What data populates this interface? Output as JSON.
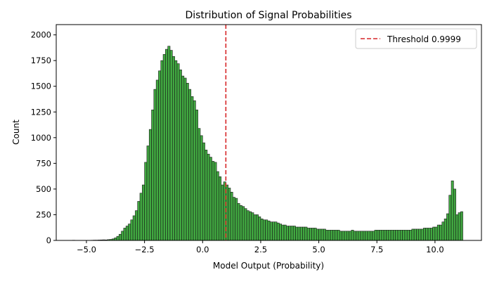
{
  "chart_data": {
    "type": "bar",
    "title": "Distribution of Signal Probabilities",
    "xlabel": "Model Output (Probability)",
    "ylabel": "Count",
    "xlim": [
      -6.3,
      12.0
    ],
    "ylim": [
      0,
      2100
    ],
    "xticks": [
      -5.0,
      -2.5,
      0.0,
      2.5,
      5.0,
      7.5,
      10.0
    ],
    "xtick_labels": [
      "−5.0",
      "−2.5",
      "0.0",
      "2.5",
      "5.0",
      "7.5",
      "10.0"
    ],
    "yticks": [
      0,
      250,
      500,
      750,
      1000,
      1250,
      1500,
      1750,
      2000
    ],
    "ytick_labels": [
      "0",
      "250",
      "500",
      "750",
      "1000",
      "1250",
      "1500",
      "1750",
      "2000"
    ],
    "grid": false,
    "legend_position": "top-right",
    "bin_start": -5.6,
    "bin_width": 0.1,
    "bar_color": "#2ca02c",
    "bar_edge_color": "#1a1a1a",
    "values": [
      2,
      0,
      0,
      0,
      0,
      0,
      0,
      0,
      2,
      3,
      3,
      4,
      5,
      6,
      5,
      8,
      10,
      15,
      25,
      40,
      60,
      90,
      120,
      140,
      160,
      200,
      240,
      290,
      380,
      460,
      540,
      760,
      920,
      1080,
      1270,
      1470,
      1560,
      1650,
      1750,
      1810,
      1860,
      1890,
      1850,
      1790,
      1750,
      1720,
      1660,
      1600,
      1580,
      1530,
      1470,
      1400,
      1360,
      1270,
      1090,
      1020,
      950,
      880,
      840,
      810,
      770,
      760,
      670,
      620,
      540,
      570,
      540,
      510,
      470,
      420,
      410,
      360,
      340,
      330,
      310,
      290,
      280,
      270,
      250,
      250,
      230,
      210,
      200,
      200,
      190,
      180,
      180,
      180,
      170,
      160,
      150,
      150,
      140,
      140,
      140,
      140,
      130,
      130,
      130,
      130,
      130,
      120,
      120,
      120,
      120,
      110,
      110,
      110,
      110,
      100,
      100,
      100,
      100,
      100,
      100,
      90,
      90,
      90,
      90,
      90,
      100,
      90,
      90,
      90,
      90,
      90,
      90,
      90,
      90,
      90,
      100,
      100,
      100,
      100,
      100,
      100,
      100,
      100,
      100,
      100,
      100,
      100,
      100,
      100,
      100,
      100,
      110,
      110,
      110,
      110,
      110,
      120,
      120,
      120,
      120,
      130,
      130,
      150,
      150,
      180,
      210,
      260,
      440,
      580,
      500,
      250,
      270,
      280
    ],
    "threshold": {
      "x": 1.0,
      "label": "Threshold 0.9999",
      "color": "#d62728",
      "style": "dashed"
    }
  }
}
